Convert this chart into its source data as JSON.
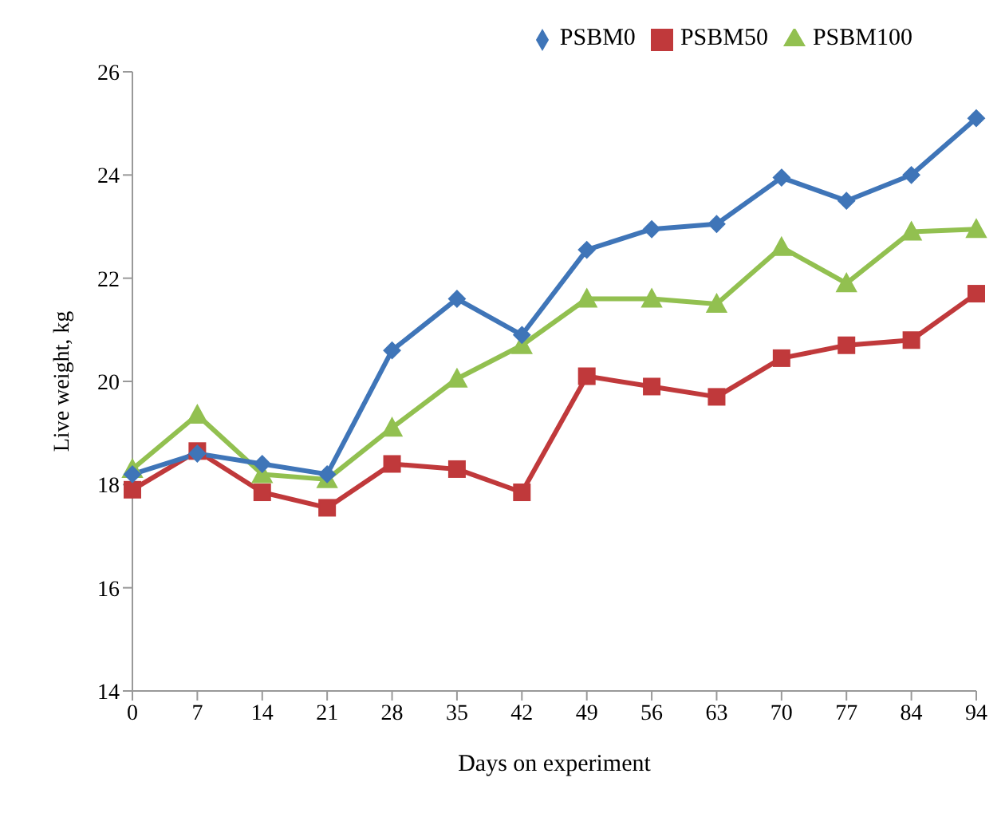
{
  "chart_data": {
    "type": "line",
    "xlabel": "Days on experiment",
    "ylabel": "Live weight, kg",
    "categories": [
      "0",
      "7",
      "14",
      "21",
      "28",
      "35",
      "42",
      "49",
      "56",
      "63",
      "70",
      "77",
      "84",
      "94"
    ],
    "ylim": [
      14,
      26
    ],
    "yticks": [
      14,
      16,
      18,
      20,
      22,
      24,
      26
    ],
    "grid": false,
    "legend": "top right",
    "series": [
      {
        "name": "PSBM0",
        "color": "#3f75b8",
        "marker": "diamond",
        "values": [
          18.2,
          18.6,
          18.4,
          18.2,
          20.6,
          21.6,
          20.9,
          22.55,
          22.95,
          23.05,
          23.95,
          23.5,
          24.0,
          25.1
        ]
      },
      {
        "name": "PSBM50",
        "color": "#c0393b",
        "marker": "square",
        "values": [
          17.9,
          18.65,
          17.85,
          17.55,
          18.4,
          18.3,
          17.85,
          20.1,
          19.9,
          19.7,
          20.45,
          20.7,
          20.8,
          21.7
        ]
      },
      {
        "name": "PSBM100",
        "color": "#92c050",
        "marker": "triangle",
        "values": [
          18.3,
          19.35,
          18.2,
          18.1,
          19.1,
          20.05,
          20.7,
          21.6,
          21.6,
          21.5,
          22.6,
          21.9,
          22.9,
          22.95
        ]
      }
    ]
  }
}
